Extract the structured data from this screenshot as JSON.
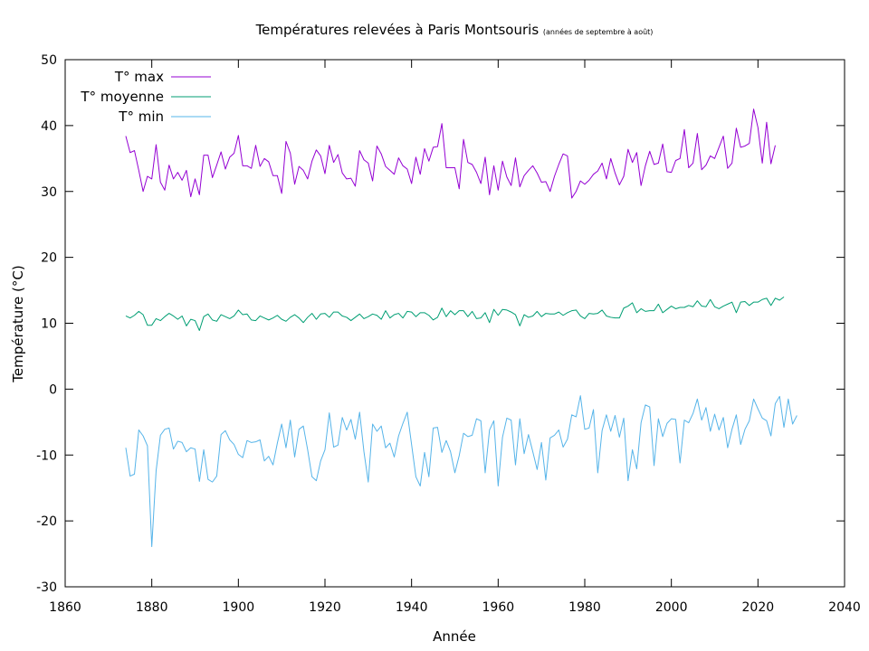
{
  "chart_data": {
    "type": "line",
    "title": "Températures relevées à Paris Montsouris",
    "subtitle": "(années de septembre à août)",
    "xlabel": "Année",
    "ylabel": "Température (°C)",
    "xlim": [
      1860,
      2040
    ],
    "ylim": [
      -30,
      50
    ],
    "xticks": [
      1860,
      1880,
      1900,
      1920,
      1940,
      1960,
      1980,
      2000,
      2020,
      2040
    ],
    "yticks": [
      -30,
      -20,
      -10,
      0,
      10,
      20,
      30,
      40,
      50
    ],
    "grid": false,
    "legend_position": "top-left",
    "x_start": 1874,
    "series": [
      {
        "name": "T° max",
        "color": "#9400d3",
        "values": [
          38.4,
          35.9,
          36.2,
          33.2,
          30.0,
          32.3,
          31.9,
          37.1,
          31.4,
          30.2,
          34.0,
          31.9,
          32.9,
          31.7,
          33.2,
          29.2,
          31.9,
          29.5,
          35.5,
          35.5,
          32.1,
          34.0,
          36.0,
          33.4,
          35.2,
          35.8,
          38.5,
          33.9,
          33.9,
          33.5,
          37.0,
          33.8,
          35.0,
          34.5,
          32.4,
          32.4,
          29.7,
          37.6,
          35.8,
          31.1,
          33.8,
          33.2,
          31.9,
          34.6,
          36.3,
          35.4,
          32.7,
          37.0,
          34.4,
          35.6,
          32.8,
          31.9,
          32.0,
          30.8,
          36.2,
          34.8,
          34.3,
          31.6,
          36.9,
          35.7,
          33.8,
          33.2,
          32.6,
          35.1,
          33.9,
          33.4,
          31.2,
          35.2,
          32.6,
          36.5,
          34.6,
          36.7,
          36.8,
          40.3,
          33.6,
          33.6,
          33.6,
          30.4,
          37.9,
          34.4,
          34.1,
          32.9,
          31.2,
          35.2,
          29.5,
          33.9,
          30.2,
          34.6,
          32.2,
          30.9,
          35.1,
          30.7,
          32.4,
          33.2,
          33.9,
          32.8,
          31.4,
          31.5,
          30.0,
          32.3,
          34.1,
          35.7,
          35.4,
          29.0,
          30.0,
          31.6,
          31.1,
          31.7,
          32.6,
          33.1,
          34.3,
          31.9,
          35.0,
          32.8,
          31.0,
          32.3,
          36.4,
          34.4,
          35.9,
          30.9,
          33.9,
          36.1,
          34.1,
          34.3,
          37.2,
          33.0,
          32.9,
          34.7,
          35.0,
          39.4,
          33.6,
          34.3,
          38.8,
          33.3,
          34.0,
          35.4,
          35.0,
          36.7,
          38.4,
          33.5,
          34.3,
          39.6,
          36.7,
          36.9,
          37.3,
          42.5,
          39.7,
          34.3,
          40.5,
          34.2,
          37.0
        ]
      },
      {
        "name": "T° moyenne",
        "color": "#009e73",
        "values": [
          11.1,
          10.8,
          11.2,
          11.8,
          11.3,
          9.7,
          9.7,
          10.7,
          10.4,
          11.0,
          11.5,
          11.1,
          10.6,
          11.1,
          9.6,
          10.6,
          10.4,
          8.9,
          11.0,
          11.4,
          10.5,
          10.3,
          11.3,
          11.0,
          10.7,
          11.1,
          12.0,
          11.3,
          11.4,
          10.5,
          10.4,
          11.1,
          10.8,
          10.5,
          10.8,
          11.2,
          10.6,
          10.3,
          10.9,
          11.3,
          10.8,
          10.1,
          10.9,
          11.5,
          10.6,
          11.4,
          11.5,
          10.9,
          11.7,
          11.7,
          11.1,
          10.9,
          10.4,
          10.9,
          11.4,
          10.7,
          11.0,
          11.4,
          11.2,
          10.6,
          11.9,
          10.8,
          11.3,
          11.5,
          10.8,
          11.8,
          11.7,
          11.0,
          11.6,
          11.6,
          11.2,
          10.5,
          10.9,
          12.3,
          11.0,
          11.9,
          11.3,
          11.9,
          11.9,
          11.0,
          11.8,
          10.7,
          10.8,
          11.6,
          10.1,
          12.1,
          11.2,
          12.1,
          12.0,
          11.7,
          11.3,
          9.6,
          11.3,
          10.9,
          11.1,
          11.8,
          11.0,
          11.5,
          11.4,
          11.4,
          11.7,
          11.2,
          11.6,
          11.9,
          12.0,
          11.1,
          10.7,
          11.5,
          11.4,
          11.5,
          12.0,
          11.1,
          10.9,
          10.8,
          10.8,
          12.3,
          12.6,
          13.1,
          11.6,
          12.2,
          11.8,
          11.9,
          11.9,
          12.9,
          11.6,
          12.1,
          12.6,
          12.2,
          12.4,
          12.4,
          12.7,
          12.5,
          13.4,
          12.6,
          12.5,
          13.6,
          12.5,
          12.2,
          12.6,
          12.9,
          13.2,
          11.6,
          13.2,
          13.3,
          12.7,
          13.2,
          13.2,
          13.6,
          13.8,
          12.7,
          13.8,
          13.5,
          14.0
        ]
      },
      {
        "name": "T° min",
        "color": "#56b4e9",
        "values": [
          -8.9,
          -13.2,
          -12.9,
          -6.2,
          -7.1,
          -8.6,
          -23.9,
          -12.4,
          -7.0,
          -6.1,
          -5.9,
          -9.1,
          -7.9,
          -8.1,
          -9.5,
          -8.9,
          -9.1,
          -14.0,
          -9.2,
          -13.7,
          -14.1,
          -13.2,
          -6.9,
          -6.3,
          -7.7,
          -8.4,
          -9.9,
          -10.4,
          -7.8,
          -8.1,
          -8.0,
          -7.7,
          -10.9,
          -10.2,
          -11.5,
          -8.2,
          -5.3,
          -8.9,
          -4.7,
          -10.3,
          -6.1,
          -5.6,
          -9.2,
          -13.3,
          -13.9,
          -10.9,
          -9.2,
          -3.6,
          -8.8,
          -8.5,
          -4.3,
          -6.2,
          -4.6,
          -7.6,
          -3.5,
          -9.5,
          -14.1,
          -5.3,
          -6.4,
          -5.6,
          -8.9,
          -8.2,
          -10.3,
          -7.1,
          -5.2,
          -3.5,
          -8.4,
          -13.3,
          -14.7,
          -9.6,
          -13.3,
          -5.9,
          -5.8,
          -9.6,
          -7.8,
          -9.5,
          -12.7,
          -10.1,
          -6.7,
          -7.2,
          -7.0,
          -4.5,
          -4.8,
          -12.7,
          -6.2,
          -4.8,
          -14.7,
          -7.3,
          -4.4,
          -4.7,
          -11.5,
          -4.5,
          -9.8,
          -6.9,
          -9.5,
          -12.2,
          -8.1,
          -13.8,
          -7.4,
          -7.0,
          -6.2,
          -8.8,
          -7.6,
          -3.9,
          -4.2,
          -1.0,
          -6.1,
          -5.9,
          -3.1,
          -12.7,
          -6.3,
          -3.9,
          -6.4,
          -4.0,
          -7.3,
          -4.4,
          -13.9,
          -9.2,
          -12.1,
          -5.1,
          -2.4,
          -2.7,
          -11.6,
          -4.5,
          -7.2,
          -5.2,
          -4.5,
          -4.6,
          -11.2,
          -4.7,
          -5.1,
          -3.7,
          -1.5,
          -4.7,
          -2.8,
          -6.4,
          -3.8,
          -6.2,
          -4.3,
          -8.9,
          -6.1,
          -3.9,
          -8.4,
          -6.1,
          -4.8,
          -1.5,
          -3.0,
          -4.4,
          -4.8,
          -7.1,
          -2.2,
          -1.1,
          -5.8,
          -1.5,
          -5.3,
          -4.0
        ]
      }
    ]
  }
}
